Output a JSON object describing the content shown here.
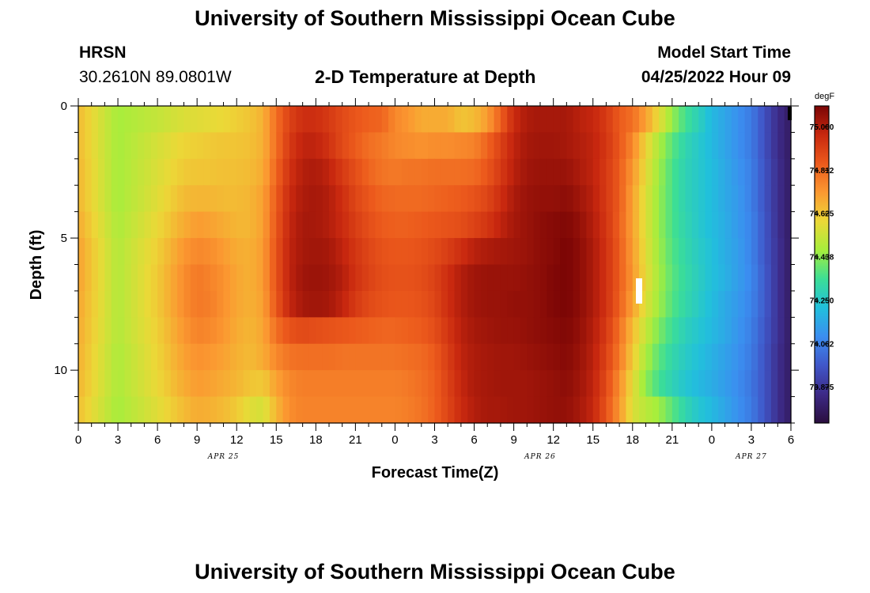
{
  "header": {
    "title": "University of Southern Mississippi Ocean Cube",
    "station": "HRSN",
    "coords": "30.2610N  89.0801W",
    "plot_title": "2-D Temperature at Depth",
    "model_label": "Model Start Time",
    "model_time": "04/25/2022 Hour 09"
  },
  "footer": {
    "title": "University of Southern Mississippi Ocean Cube"
  },
  "chart_data": {
    "type": "heatmap",
    "title": "2-D Temperature at Depth",
    "xlabel": "Forecast Time(Z)",
    "ylabel": "Depth (ft)",
    "units": "degF",
    "x_range_hours": [
      0,
      54
    ],
    "y_range_ft": [
      0,
      12
    ],
    "x_ticks": [
      "0",
      "3",
      "6",
      "9",
      "12",
      "15",
      "18",
      "21",
      "0",
      "3",
      "6",
      "9",
      "12",
      "15",
      "18",
      "21",
      "0",
      "3",
      "6"
    ],
    "y_ticks": [
      "0",
      "5",
      "10"
    ],
    "date_labels": [
      {
        "label": "APR 25",
        "hour": 11
      },
      {
        "label": "APR 26",
        "hour": 35
      },
      {
        "label": "APR 27",
        "hour": 51
      }
    ],
    "colorbar": {
      "min": 73.72,
      "max": 75.09,
      "ticks": [
        "75.000",
        "74.812",
        "74.625",
        "74.438",
        "74.250",
        "74.062",
        "73.875"
      ]
    },
    "color_scale": [
      "#2a0e3e",
      "#3d2a87",
      "#4057c9",
      "#3b8ef0",
      "#21c0dc",
      "#3cde96",
      "#a6ee3c",
      "#ecd837",
      "#fb9931",
      "#ec5a1c",
      "#c8280f",
      "#7a0505"
    ],
    "depth_levels_ft": [
      0.5,
      1.5,
      2.5,
      3.5,
      4.5,
      5.5,
      6.5,
      7.5,
      8.5,
      9.5,
      10.5,
      11.5
    ],
    "hour_knots": [
      0,
      3,
      6,
      8,
      9,
      10,
      11,
      12,
      13,
      14,
      15,
      16,
      17,
      18,
      19,
      20,
      21,
      22,
      23,
      24,
      25,
      26,
      27,
      28,
      29,
      30,
      31,
      32,
      33,
      34,
      35,
      36,
      37,
      38,
      39,
      40,
      41,
      42,
      43,
      44,
      45,
      46,
      47,
      48,
      49,
      50,
      51,
      52,
      53,
      54
    ],
    "temps_degF": [
      [
        74.65,
        74.47,
        74.52,
        74.56,
        74.57,
        74.58,
        74.59,
        74.61,
        74.63,
        74.67,
        74.8,
        74.9,
        74.95,
        74.95,
        74.92,
        74.88,
        74.85,
        74.83,
        74.82,
        74.75,
        74.72,
        74.68,
        74.68,
        74.68,
        74.63,
        74.65,
        74.71,
        74.83,
        74.96,
        75.01,
        75.02,
        75.02,
        75.02,
        74.99,
        74.97,
        74.92,
        74.84,
        74.8,
        74.7,
        74.58,
        74.45,
        74.35,
        74.28,
        74.2,
        74.15,
        74.1,
        74.05,
        73.95,
        73.85,
        73.78
      ],
      [
        74.65,
        74.47,
        74.55,
        74.6,
        74.61,
        74.62,
        74.63,
        74.63,
        74.64,
        74.67,
        74.8,
        74.92,
        74.98,
        74.98,
        74.94,
        74.88,
        74.84,
        74.8,
        74.78,
        74.75,
        74.74,
        74.73,
        74.74,
        74.74,
        74.75,
        74.76,
        74.82,
        74.9,
        74.98,
        75.02,
        75.03,
        75.03,
        75.02,
        75.0,
        74.98,
        74.93,
        74.85,
        74.75,
        74.6,
        74.48,
        74.38,
        74.3,
        74.25,
        74.2,
        74.15,
        74.1,
        74.05,
        73.95,
        73.85,
        73.78
      ],
      [
        74.66,
        74.47,
        74.56,
        74.62,
        74.63,
        74.63,
        74.64,
        74.64,
        74.65,
        74.68,
        74.82,
        74.94,
        75.0,
        75.01,
        74.98,
        74.92,
        74.87,
        74.82,
        74.79,
        74.78,
        74.79,
        74.79,
        74.8,
        74.8,
        74.8,
        74.81,
        74.85,
        74.92,
        74.99,
        75.03,
        75.04,
        75.04,
        75.04,
        75.01,
        74.98,
        74.92,
        74.84,
        74.72,
        74.58,
        74.46,
        74.36,
        74.29,
        74.25,
        74.21,
        74.16,
        74.11,
        74.06,
        73.96,
        73.86,
        73.78
      ],
      [
        74.66,
        74.47,
        74.57,
        74.65,
        74.66,
        74.66,
        74.65,
        74.65,
        74.66,
        74.7,
        74.84,
        74.96,
        75.01,
        75.02,
        75.0,
        74.95,
        74.89,
        74.85,
        74.82,
        74.81,
        74.81,
        74.81,
        74.82,
        74.83,
        74.84,
        74.86,
        74.89,
        74.95,
        75.01,
        75.04,
        75.05,
        75.05,
        75.06,
        75.03,
        74.99,
        74.92,
        74.84,
        74.7,
        74.56,
        74.45,
        74.36,
        74.29,
        74.25,
        74.21,
        74.16,
        74.12,
        74.06,
        73.96,
        73.86,
        73.78
      ],
      [
        74.68,
        74.48,
        74.59,
        74.68,
        74.71,
        74.7,
        74.68,
        74.66,
        74.66,
        74.7,
        74.85,
        74.97,
        75.02,
        75.02,
        75.0,
        74.96,
        74.91,
        74.87,
        74.84,
        74.83,
        74.83,
        74.84,
        74.85,
        74.86,
        74.87,
        74.9,
        74.93,
        74.98,
        75.02,
        75.04,
        75.06,
        75.07,
        75.08,
        75.05,
        75.0,
        74.93,
        74.83,
        74.7,
        74.56,
        74.45,
        74.36,
        74.3,
        74.25,
        74.21,
        74.17,
        74.12,
        74.07,
        73.97,
        73.86,
        73.78
      ],
      [
        74.7,
        74.49,
        74.61,
        74.72,
        74.75,
        74.74,
        74.71,
        74.68,
        74.67,
        74.71,
        74.86,
        74.98,
        75.02,
        75.03,
        75.02,
        74.98,
        74.93,
        74.89,
        74.86,
        74.85,
        74.85,
        74.86,
        74.88,
        74.91,
        74.95,
        74.99,
        75.01,
        75.02,
        75.03,
        75.04,
        75.06,
        75.07,
        75.09,
        75.06,
        75.01,
        74.94,
        74.84,
        74.71,
        74.57,
        74.46,
        74.37,
        74.31,
        74.26,
        74.22,
        74.17,
        74.13,
        74.07,
        73.97,
        73.87,
        73.78
      ],
      [
        74.7,
        74.49,
        74.62,
        74.74,
        74.78,
        74.76,
        74.73,
        74.69,
        74.67,
        74.71,
        74.86,
        74.98,
        75.03,
        75.04,
        75.03,
        75.0,
        74.94,
        74.9,
        74.87,
        74.86,
        74.86,
        74.87,
        74.9,
        74.95,
        75.0,
        75.03,
        75.04,
        75.04,
        75.04,
        75.05,
        75.06,
        75.08,
        75.09,
        75.06,
        75.01,
        74.94,
        74.84,
        74.72,
        74.58,
        74.47,
        74.38,
        74.32,
        74.27,
        74.22,
        74.18,
        74.13,
        74.08,
        73.98,
        73.87,
        73.78
      ],
      [
        74.69,
        74.49,
        74.62,
        74.74,
        74.78,
        74.77,
        74.73,
        74.69,
        74.67,
        74.7,
        74.85,
        74.97,
        75.02,
        75.03,
        75.02,
        74.98,
        74.92,
        74.88,
        74.86,
        74.85,
        74.85,
        74.86,
        74.89,
        74.95,
        75.0,
        75.03,
        75.04,
        75.04,
        75.05,
        75.05,
        75.06,
        75.08,
        75.09,
        75.06,
        75.01,
        74.94,
        74.83,
        74.7,
        74.56,
        74.46,
        74.37,
        74.31,
        74.26,
        74.21,
        74.16,
        74.12,
        74.07,
        73.98,
        73.87,
        73.78
      ],
      [
        74.68,
        74.49,
        74.61,
        74.72,
        74.76,
        74.75,
        74.72,
        74.68,
        74.66,
        74.69,
        74.8,
        74.86,
        74.88,
        74.87,
        74.86,
        74.85,
        74.84,
        74.83,
        74.82,
        74.82,
        74.83,
        74.84,
        74.87,
        74.93,
        74.99,
        75.02,
        75.03,
        75.04,
        75.04,
        75.05,
        75.06,
        75.07,
        75.08,
        75.05,
        75.0,
        74.92,
        74.8,
        74.65,
        74.52,
        74.42,
        74.34,
        74.28,
        74.24,
        74.2,
        74.16,
        74.11,
        74.06,
        73.97,
        73.87,
        73.78
      ],
      [
        74.67,
        74.48,
        74.6,
        74.7,
        74.73,
        74.72,
        74.7,
        74.67,
        74.65,
        74.68,
        74.75,
        74.79,
        74.8,
        74.8,
        74.8,
        74.79,
        74.79,
        74.79,
        74.79,
        74.79,
        74.8,
        74.81,
        74.84,
        74.91,
        74.98,
        75.01,
        75.02,
        75.03,
        75.03,
        75.04,
        75.05,
        75.06,
        75.07,
        75.04,
        74.99,
        74.9,
        74.78,
        74.62,
        74.48,
        74.38,
        74.31,
        74.26,
        74.22,
        74.18,
        74.14,
        74.1,
        74.05,
        73.96,
        73.86,
        73.78
      ],
      [
        74.66,
        74.48,
        74.59,
        74.68,
        74.71,
        74.7,
        74.68,
        74.66,
        74.63,
        74.62,
        74.7,
        74.75,
        74.77,
        74.77,
        74.77,
        74.77,
        74.77,
        74.77,
        74.77,
        74.77,
        74.78,
        74.8,
        74.83,
        74.9,
        74.97,
        75.01,
        75.02,
        75.03,
        75.03,
        75.03,
        75.04,
        75.05,
        75.06,
        75.03,
        74.98,
        74.88,
        74.74,
        74.58,
        74.44,
        74.35,
        74.29,
        74.24,
        74.2,
        74.17,
        74.13,
        74.09,
        74.04,
        73.96,
        73.86,
        73.78
      ],
      [
        74.64,
        74.47,
        74.57,
        74.65,
        74.68,
        74.67,
        74.65,
        74.62,
        74.57,
        74.55,
        74.66,
        74.74,
        74.76,
        74.76,
        74.76,
        74.76,
        74.76,
        74.76,
        74.76,
        74.76,
        74.77,
        74.79,
        74.83,
        74.89,
        74.96,
        75.0,
        75.02,
        75.02,
        75.03,
        75.03,
        75.04,
        75.05,
        75.05,
        75.02,
        74.97,
        74.86,
        74.72,
        74.56,
        74.5,
        74.46,
        74.38,
        74.3,
        74.24,
        74.2,
        74.15,
        74.1,
        74.05,
        73.96,
        73.86,
        73.78
      ]
    ],
    "colorbar_units": "degF"
  },
  "marker_note": ""
}
